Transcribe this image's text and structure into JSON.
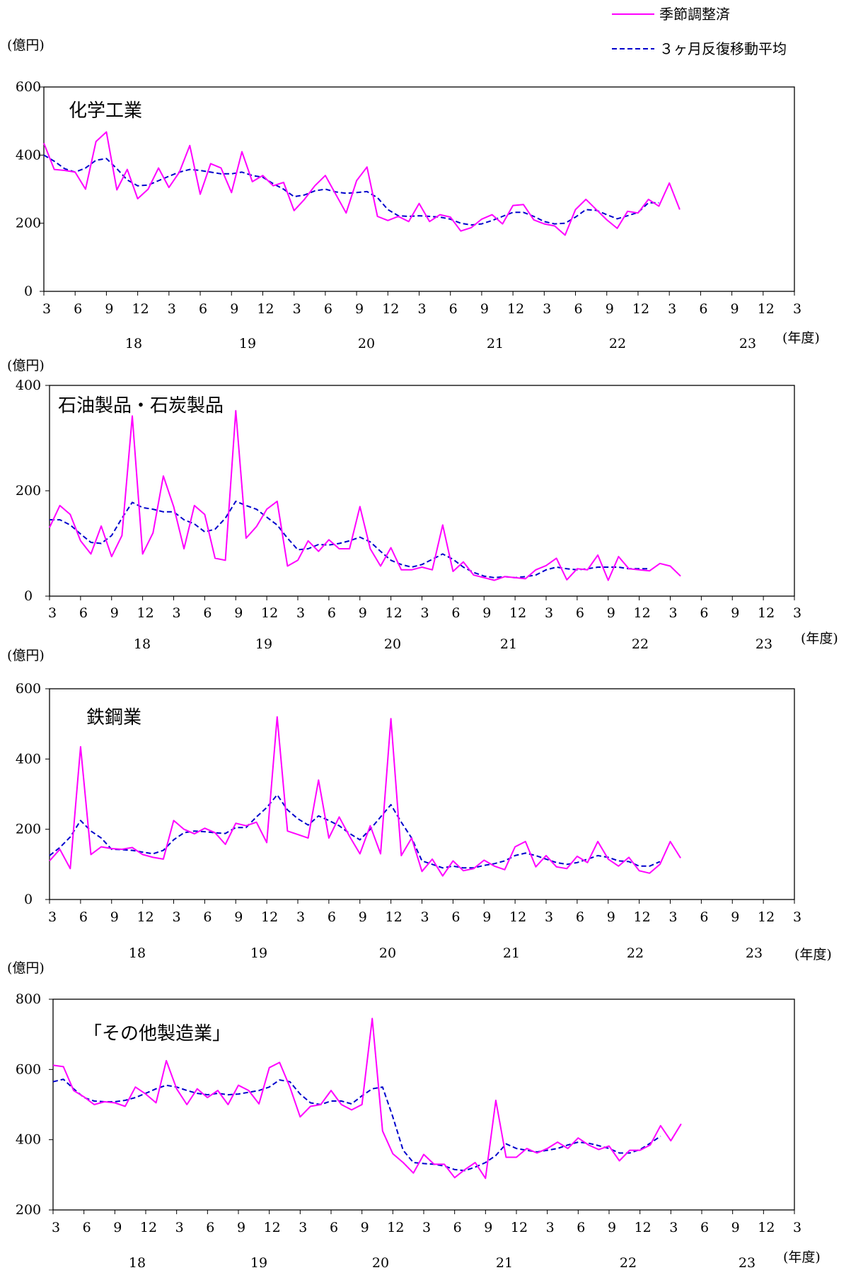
{
  "legend": {
    "seasonal": {
      "label": "季節調整済",
      "color": "#ff00ff"
    },
    "moving_avg": {
      "label": "３ヶ月反復移動平均",
      "color": "#0000cc"
    }
  },
  "chart_data": [
    {
      "type": "line",
      "title": "化学工業",
      "unit_label": "(億円)",
      "fy_axis_label": "(年度)",
      "ylim": [
        0,
        600
      ],
      "yticks": [
        "0",
        "200",
        "400",
        "600"
      ],
      "month_ticks": [
        "3",
        "6",
        "9",
        "12",
        "3",
        "6",
        "9",
        "12",
        "3",
        "6",
        "9",
        "12",
        "3",
        "6",
        "9",
        "12",
        "3",
        "6",
        "9",
        "12",
        "3",
        "6",
        "9",
        "12",
        "3"
      ],
      "fiscal_years": [
        "18",
        "19",
        "20",
        "21",
        "22",
        "23"
      ],
      "series": [
        {
          "name": "季節調整済",
          "values": [
            435,
            358,
            355,
            350,
            300,
            440,
            468,
            298,
            358,
            272,
            300,
            362,
            305,
            350,
            428,
            285,
            375,
            362,
            290,
            410,
            322,
            340,
            310,
            320,
            237,
            270,
            310,
            340,
            285,
            230,
            325,
            365,
            220,
            208,
            220,
            205,
            258,
            205,
            225,
            218,
            177,
            187,
            212,
            225,
            198,
            252,
            255,
            210,
            198,
            192,
            165,
            240,
            270,
            240,
            210,
            185,
            235,
            230,
            270,
            250,
            318,
            240
          ]
        },
        {
          "name": "３ヶ月反復移動平均",
          "values": [
            400,
            382,
            360,
            350,
            362,
            385,
            390,
            360,
            327,
            310,
            312,
            325,
            338,
            350,
            358,
            355,
            350,
            345,
            345,
            350,
            340,
            335,
            316,
            300,
            278,
            283,
            295,
            300,
            292,
            288,
            290,
            293,
            275,
            240,
            222,
            220,
            222,
            220,
            218,
            212,
            200,
            195,
            198,
            208,
            220,
            232,
            232,
            220,
            205,
            198,
            200,
            218,
            240,
            238,
            225,
            213,
            222,
            232,
            260,
            260
          ]
        }
      ]
    },
    {
      "type": "line",
      "title": "石油製品・石炭製品",
      "unit_label": "(億円)",
      "fy_axis_label": "(年度)",
      "ylim": [
        0,
        400
      ],
      "yticks": [
        "0",
        "200",
        "400"
      ],
      "month_ticks": [
        "3",
        "6",
        "9",
        "12",
        "3",
        "6",
        "9",
        "12",
        "3",
        "6",
        "9",
        "12",
        "3",
        "6",
        "9",
        "12",
        "3",
        "6",
        "9",
        "12",
        "3",
        "6",
        "9",
        "12",
        "3"
      ],
      "fiscal_years": [
        "18",
        "19",
        "20",
        "21",
        "22",
        "23"
      ],
      "series": [
        {
          "name": "季節調整済",
          "values": [
            130,
            172,
            155,
            105,
            80,
            133,
            75,
            115,
            342,
            80,
            120,
            228,
            170,
            90,
            172,
            155,
            72,
            68,
            352,
            110,
            132,
            165,
            180,
            57,
            68,
            105,
            85,
            107,
            90,
            90,
            170,
            90,
            57,
            92,
            50,
            50,
            55,
            50,
            135,
            47,
            65,
            40,
            35,
            30,
            37,
            35,
            33,
            50,
            58,
            72,
            31,
            52,
            50,
            78,
            30,
            75,
            52,
            50,
            48,
            62,
            57,
            38
          ]
        },
        {
          "name": "３ヶ月反復移動平均",
          "values": [
            145,
            145,
            135,
            118,
            102,
            100,
            115,
            148,
            178,
            168,
            165,
            160,
            160,
            145,
            137,
            122,
            127,
            148,
            180,
            172,
            165,
            150,
            135,
            110,
            88,
            90,
            98,
            97,
            100,
            105,
            112,
            103,
            85,
            68,
            60,
            55,
            60,
            70,
            80,
            70,
            55,
            45,
            38,
            35,
            37,
            35,
            37,
            40,
            50,
            55,
            52,
            50,
            52,
            55,
            55,
            55,
            52,
            52,
            52
          ]
        }
      ]
    },
    {
      "type": "line",
      "title": "鉄鋼業",
      "unit_label": "(億円)",
      "fy_axis_label": "(年度)",
      "ylim": [
        0,
        600
      ],
      "yticks": [
        "0",
        "200",
        "400",
        "600"
      ],
      "month_ticks": [
        "3",
        "6",
        "9",
        "12",
        "3",
        "6",
        "9",
        "12",
        "3",
        "6",
        "9",
        "12",
        "3",
        "6",
        "9",
        "12",
        "3",
        "6",
        "9",
        "12",
        "3",
        "6",
        "9",
        "12",
        "3"
      ],
      "fiscal_years": [
        "18",
        "19",
        "20",
        "21",
        "22",
        "23"
      ],
      "series": [
        {
          "name": "季節調整済",
          "values": [
            110,
            143,
            88,
            435,
            128,
            150,
            145,
            143,
            148,
            128,
            120,
            115,
            225,
            200,
            187,
            203,
            190,
            157,
            217,
            210,
            220,
            162,
            520,
            195,
            185,
            175,
            340,
            175,
            235,
            180,
            130,
            210,
            130,
            515,
            125,
            175,
            80,
            115,
            67,
            110,
            82,
            88,
            112,
            95,
            85,
            150,
            165,
            93,
            125,
            93,
            88,
            123,
            105,
            165,
            115,
            95,
            120,
            82,
            75,
            100,
            165,
            118
          ]
        },
        {
          "name": "３ヶ月反復移動平均",
          "values": [
            125,
            148,
            178,
            225,
            195,
            175,
            143,
            142,
            140,
            135,
            130,
            140,
            170,
            190,
            195,
            193,
            190,
            188,
            205,
            205,
            235,
            262,
            298,
            255,
            230,
            212,
            238,
            225,
            210,
            188,
            170,
            200,
            235,
            270,
            220,
            175,
            110,
            100,
            90,
            95,
            90,
            90,
            97,
            102,
            110,
            125,
            132,
            125,
            115,
            105,
            100,
            105,
            115,
            125,
            120,
            110,
            108,
            95,
            95,
            108
          ]
        }
      ]
    },
    {
      "type": "line",
      "title": "「その他製造業」",
      "unit_label": "(億円)",
      "fy_axis_label": "(年度)",
      "ylim": [
        200,
        800
      ],
      "yticks": [
        "200",
        "400",
        "600",
        "800"
      ],
      "month_ticks": [
        "3",
        "6",
        "9",
        "12",
        "3",
        "6",
        "9",
        "12",
        "3",
        "6",
        "9",
        "12",
        "3",
        "6",
        "9",
        "12",
        "3",
        "6",
        "9",
        "12",
        "3",
        "6",
        "9",
        "12",
        "3"
      ],
      "fiscal_years": [
        "18",
        "19",
        "20",
        "21",
        "22",
        "23"
      ],
      "series": [
        {
          "name": "季節調整済",
          "values": [
            612,
            608,
            540,
            522,
            500,
            508,
            505,
            495,
            550,
            530,
            505,
            625,
            545,
            500,
            545,
            520,
            540,
            500,
            555,
            540,
            502,
            605,
            620,
            550,
            465,
            495,
            500,
            540,
            500,
            485,
            500,
            745,
            425,
            360,
            335,
            305,
            358,
            330,
            330,
            292,
            315,
            335,
            290,
            512,
            350,
            350,
            375,
            362,
            375,
            393,
            375,
            405,
            385,
            372,
            382,
            340,
            370,
            370,
            385,
            440,
            397,
            445
          ]
        },
        {
          "name": "３ヶ月反復移動平均",
          "values": [
            565,
            572,
            545,
            520,
            510,
            508,
            508,
            512,
            520,
            532,
            545,
            555,
            550,
            540,
            532,
            528,
            532,
            528,
            530,
            535,
            540,
            550,
            570,
            565,
            530,
            505,
            500,
            510,
            510,
            502,
            525,
            545,
            550,
            465,
            370,
            335,
            332,
            330,
            325,
            315,
            312,
            322,
            335,
            355,
            388,
            375,
            370,
            365,
            370,
            375,
            385,
            393,
            390,
            383,
            375,
            362,
            362,
            372,
            390,
            410
          ]
        }
      ]
    }
  ]
}
